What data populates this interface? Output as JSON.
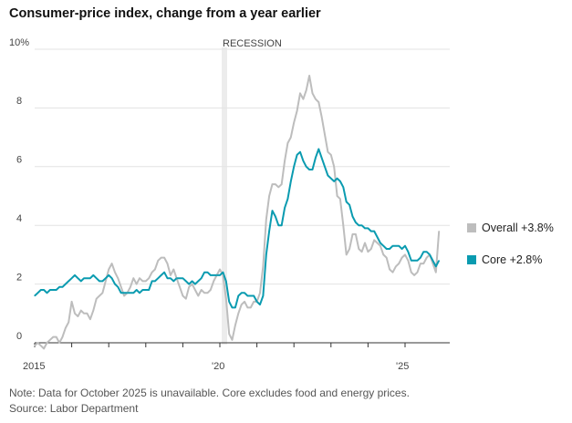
{
  "title": "Consumer-price index, change from a year earlier",
  "note": "Note: Data for October 2025 is unavailable. Core excludes food and energy prices.",
  "source": "Source: Labor Department",
  "chart_data": {
    "type": "line",
    "title": "Consumer-price index, change from a year earlier",
    "ylabel": "",
    "xlabel": "",
    "ylim": [
      0,
      10
    ],
    "xlim": [
      "2015-01",
      "2025-12"
    ],
    "y_tick_labels": [
      "0",
      "2",
      "4",
      "6",
      "8",
      "10%"
    ],
    "x_tick_labels": [
      "2015",
      "'20",
      "'25"
    ],
    "grid": "horizontal",
    "legend": "right",
    "annotations": [
      {
        "text": "RECESSION",
        "x_start": "2020-02",
        "x_end": "2020-04"
      }
    ],
    "series": [
      {
        "name": "Overall +3.8%",
        "color": "#bdbdbd",
        "x": [
          "2015-01",
          "2015-02",
          "2015-03",
          "2015-04",
          "2015-05",
          "2015-06",
          "2015-07",
          "2015-08",
          "2015-09",
          "2015-10",
          "2015-11",
          "2015-12",
          "2016-01",
          "2016-02",
          "2016-03",
          "2016-04",
          "2016-05",
          "2016-06",
          "2016-07",
          "2016-08",
          "2016-09",
          "2016-10",
          "2016-11",
          "2016-12",
          "2017-01",
          "2017-02",
          "2017-03",
          "2017-04",
          "2017-05",
          "2017-06",
          "2017-07",
          "2017-08",
          "2017-09",
          "2017-10",
          "2017-11",
          "2017-12",
          "2018-01",
          "2018-02",
          "2018-03",
          "2018-04",
          "2018-05",
          "2018-06",
          "2018-07",
          "2018-08",
          "2018-09",
          "2018-10",
          "2018-11",
          "2018-12",
          "2019-01",
          "2019-02",
          "2019-03",
          "2019-04",
          "2019-05",
          "2019-06",
          "2019-07",
          "2019-08",
          "2019-09",
          "2019-10",
          "2019-11",
          "2019-12",
          "2020-01",
          "2020-02",
          "2020-03",
          "2020-04",
          "2020-05",
          "2020-06",
          "2020-07",
          "2020-08",
          "2020-09",
          "2020-10",
          "2020-11",
          "2020-12",
          "2021-01",
          "2021-02",
          "2021-03",
          "2021-04",
          "2021-05",
          "2021-06",
          "2021-07",
          "2021-08",
          "2021-09",
          "2021-10",
          "2021-11",
          "2021-12",
          "2022-01",
          "2022-02",
          "2022-03",
          "2022-04",
          "2022-05",
          "2022-06",
          "2022-07",
          "2022-08",
          "2022-09",
          "2022-10",
          "2022-11",
          "2022-12",
          "2023-01",
          "2023-02",
          "2023-03",
          "2023-04",
          "2023-05",
          "2023-06",
          "2023-07",
          "2023-08",
          "2023-09",
          "2023-10",
          "2023-11",
          "2023-12",
          "2024-01",
          "2024-02",
          "2024-03",
          "2024-04",
          "2024-05",
          "2024-06",
          "2024-07",
          "2024-08",
          "2024-09",
          "2024-10",
          "2024-11",
          "2024-12",
          "2025-01",
          "2025-02",
          "2025-03",
          "2025-04",
          "2025-05",
          "2025-06",
          "2025-07",
          "2025-08",
          "2025-09",
          "2025-11",
          "2025-12"
        ],
        "values": [
          -0.1,
          0.0,
          -0.1,
          -0.2,
          0.0,
          0.1,
          0.2,
          0.2,
          0.0,
          0.2,
          0.5,
          0.7,
          1.4,
          1.0,
          0.9,
          1.1,
          1.0,
          1.0,
          0.8,
          1.1,
          1.5,
          1.6,
          1.7,
          2.1,
          2.5,
          2.7,
          2.4,
          2.2,
          1.9,
          1.6,
          1.7,
          1.9,
          2.2,
          2.0,
          2.2,
          2.1,
          2.1,
          2.2,
          2.4,
          2.5,
          2.8,
          2.9,
          2.9,
          2.7,
          2.3,
          2.5,
          2.2,
          1.9,
          1.6,
          1.5,
          1.9,
          2.0,
          1.8,
          1.6,
          1.8,
          1.7,
          1.7,
          1.8,
          2.1,
          2.3,
          2.5,
          2.3,
          1.5,
          0.3,
          0.1,
          0.6,
          1.0,
          1.3,
          1.4,
          1.2,
          1.2,
          1.4,
          1.4,
          1.7,
          2.6,
          4.2,
          5.0,
          5.4,
          5.4,
          5.3,
          5.4,
          6.2,
          6.8,
          7.0,
          7.5,
          7.9,
          8.5,
          8.3,
          8.6,
          9.1,
          8.5,
          8.3,
          8.2,
          7.7,
          7.1,
          6.5,
          6.4,
          6.0,
          5.0,
          4.9,
          4.0,
          3.0,
          3.2,
          3.7,
          3.7,
          3.2,
          3.1,
          3.4,
          3.1,
          3.2,
          3.5,
          3.4,
          3.3,
          3.0,
          2.9,
          2.5,
          2.4,
          2.6,
          2.7,
          2.9,
          3.0,
          2.8,
          2.4,
          2.3,
          2.4,
          2.7,
          2.7,
          2.9,
          3.0,
          2.4,
          3.8
        ]
      },
      {
        "name": "Core +2.8%",
        "color": "#0a9bb0",
        "x": [
          "2015-01",
          "2015-02",
          "2015-03",
          "2015-04",
          "2015-05",
          "2015-06",
          "2015-07",
          "2015-08",
          "2015-09",
          "2015-10",
          "2015-11",
          "2015-12",
          "2016-01",
          "2016-02",
          "2016-03",
          "2016-04",
          "2016-05",
          "2016-06",
          "2016-07",
          "2016-08",
          "2016-09",
          "2016-10",
          "2016-11",
          "2016-12",
          "2017-01",
          "2017-02",
          "2017-03",
          "2017-04",
          "2017-05",
          "2017-06",
          "2017-07",
          "2017-08",
          "2017-09",
          "2017-10",
          "2017-11",
          "2017-12",
          "2018-01",
          "2018-02",
          "2018-03",
          "2018-04",
          "2018-05",
          "2018-06",
          "2018-07",
          "2018-08",
          "2018-09",
          "2018-10",
          "2018-11",
          "2018-12",
          "2019-01",
          "2019-02",
          "2019-03",
          "2019-04",
          "2019-05",
          "2019-06",
          "2019-07",
          "2019-08",
          "2019-09",
          "2019-10",
          "2019-11",
          "2019-12",
          "2020-01",
          "2020-02",
          "2020-03",
          "2020-04",
          "2020-05",
          "2020-06",
          "2020-07",
          "2020-08",
          "2020-09",
          "2020-10",
          "2020-11",
          "2020-12",
          "2021-01",
          "2021-02",
          "2021-03",
          "2021-04",
          "2021-05",
          "2021-06",
          "2021-07",
          "2021-08",
          "2021-09",
          "2021-10",
          "2021-11",
          "2021-12",
          "2022-01",
          "2022-02",
          "2022-03",
          "2022-04",
          "2022-05",
          "2022-06",
          "2022-07",
          "2022-08",
          "2022-09",
          "2022-10",
          "2022-11",
          "2022-12",
          "2023-01",
          "2023-02",
          "2023-03",
          "2023-04",
          "2023-05",
          "2023-06",
          "2023-07",
          "2023-08",
          "2023-09",
          "2023-10",
          "2023-11",
          "2023-12",
          "2024-01",
          "2024-02",
          "2024-03",
          "2024-04",
          "2024-05",
          "2024-06",
          "2024-07",
          "2024-08",
          "2024-09",
          "2024-10",
          "2024-11",
          "2024-12",
          "2025-01",
          "2025-02",
          "2025-03",
          "2025-04",
          "2025-05",
          "2025-06",
          "2025-07",
          "2025-08",
          "2025-09",
          "2025-11",
          "2025-12"
        ],
        "values": [
          1.6,
          1.7,
          1.8,
          1.8,
          1.7,
          1.8,
          1.8,
          1.8,
          1.9,
          1.9,
          2.0,
          2.1,
          2.2,
          2.3,
          2.2,
          2.1,
          2.2,
          2.2,
          2.2,
          2.3,
          2.2,
          2.1,
          2.1,
          2.2,
          2.3,
          2.2,
          2.0,
          1.9,
          1.7,
          1.7,
          1.7,
          1.7,
          1.7,
          1.8,
          1.7,
          1.8,
          1.8,
          1.8,
          2.1,
          2.1,
          2.2,
          2.3,
          2.4,
          2.2,
          2.2,
          2.1,
          2.2,
          2.2,
          2.2,
          2.1,
          2.0,
          2.1,
          2.0,
          2.1,
          2.2,
          2.4,
          2.4,
          2.3,
          2.3,
          2.3,
          2.3,
          2.4,
          2.1,
          1.4,
          1.2,
          1.2,
          1.6,
          1.7,
          1.7,
          1.6,
          1.6,
          1.6,
          1.4,
          1.3,
          1.6,
          3.0,
          3.8,
          4.5,
          4.3,
          4.0,
          4.0,
          4.6,
          4.9,
          5.5,
          6.0,
          6.4,
          6.5,
          6.2,
          6.0,
          5.9,
          5.9,
          6.3,
          6.6,
          6.3,
          6.0,
          5.7,
          5.6,
          5.5,
          5.6,
          5.5,
          5.3,
          4.8,
          4.7,
          4.3,
          4.1,
          4.0,
          4.0,
          3.9,
          3.9,
          3.8,
          3.8,
          3.6,
          3.4,
          3.3,
          3.2,
          3.2,
          3.3,
          3.3,
          3.3,
          3.2,
          3.3,
          3.1,
          2.8,
          2.8,
          2.8,
          2.9,
          3.1,
          3.1,
          3.0,
          2.6,
          2.8
        ]
      }
    ]
  }
}
